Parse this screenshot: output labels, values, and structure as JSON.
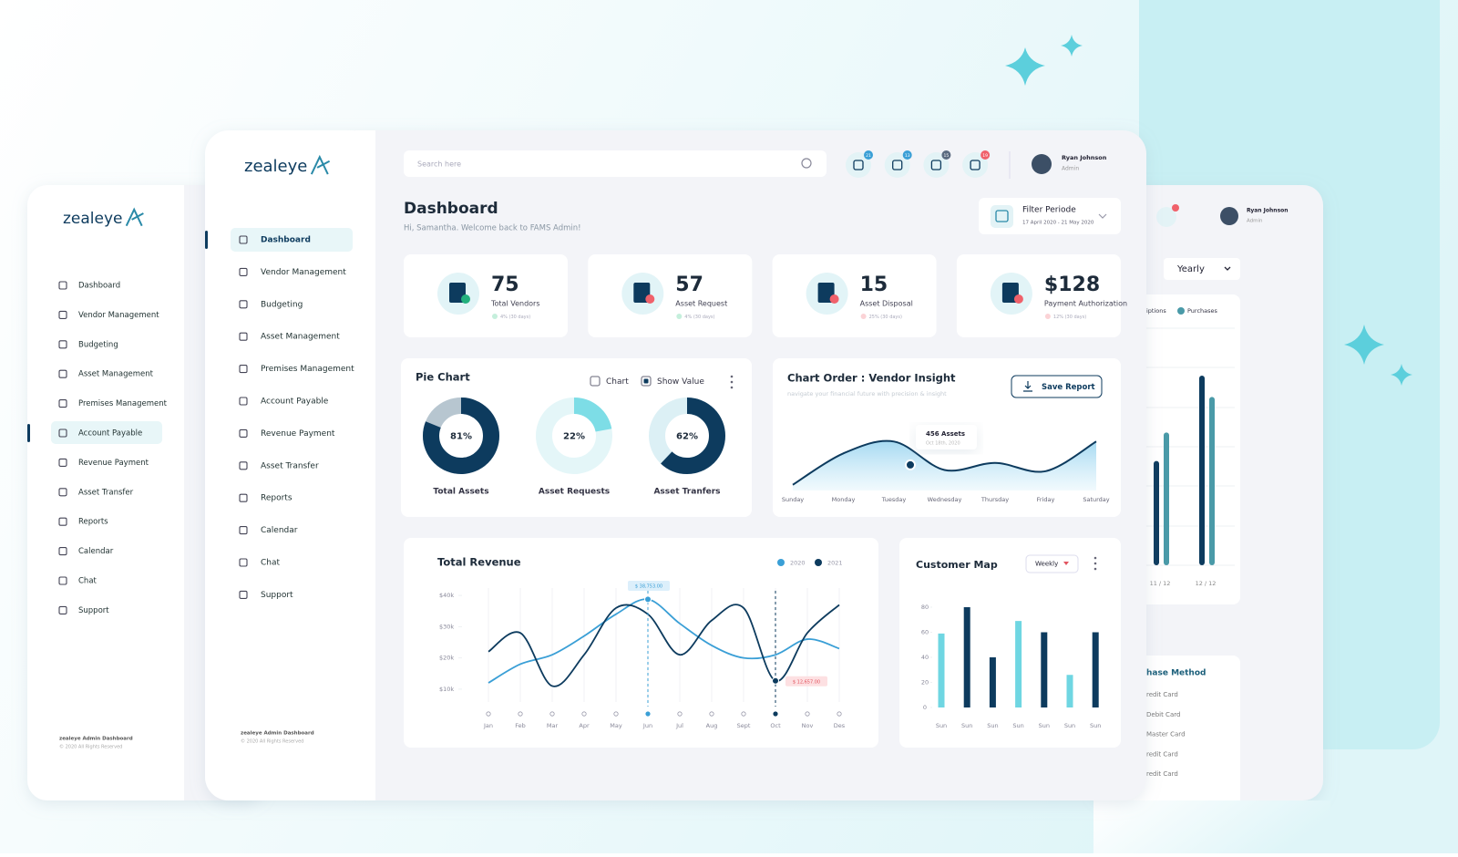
{
  "back_left": {
    "brand": "zealeye",
    "menu": [
      "Dashboard",
      "Vendor Management",
      "Budgeting",
      "Asset Management",
      "Premises Management",
      "Account Payable",
      "Revenue Payment",
      "Asset Transfer",
      "Reports",
      "Calendar",
      "Chat",
      "Support"
    ],
    "footer_title": "zealeye Admin Dashboard",
    "footer_copy": "© 2020 All Rights Reserved"
  },
  "main": {
    "brand": "zealeye",
    "menu": [
      "Dashboard",
      "Vendor Management",
      "Budgeting",
      "Asset Management",
      "Premises Management",
      "Account Payable",
      "Revenue Payment",
      "Asset Transfer",
      "Reports",
      "Calendar",
      "Chat",
      "Support"
    ],
    "footer_title": "zealeye Admin Dashboard",
    "footer_copy": "© 2020 All Rights Reserved",
    "search_placeholder": "Search here",
    "badges": [
      "21",
      "13",
      "15",
      "19"
    ],
    "user": {
      "name": "Ryan Johnson",
      "role": "Admin"
    },
    "page_title": "Dashboard",
    "greeting": "Hi, Samantha. Welcome back to FAMS Admin!",
    "filter": {
      "label": "Filter Periode",
      "range": "17 April 2020 - 21 May 2020"
    },
    "stats": [
      {
        "value": "75",
        "label": "Total Vendors",
        "change": "4% (30 days)"
      },
      {
        "value": "57",
        "label": "Asset Request",
        "change": "4% (30 days)"
      },
      {
        "value": "15",
        "label": "Asset Disposal",
        "change": "25% (30 days)"
      },
      {
        "value": "$128",
        "label": "Payment Authorization",
        "change": "12% (30 days)"
      }
    ],
    "pie_chart": {
      "type": "pie",
      "title": "Pie Chart",
      "options": [
        "Chart",
        "Show Value"
      ],
      "categories": [
        "Total Assets",
        "Asset Requests",
        "Asset Tranfers"
      ],
      "values": [
        81,
        22,
        62
      ],
      "value_labels": [
        "81%",
        "22%",
        "62%"
      ],
      "colors": [
        "#0d3b5e",
        "#7ddde6",
        "#0d3b5e"
      ],
      "track_colors": [
        "#b7c6d0",
        "#e4f6f8",
        "#dcf0f5"
      ]
    },
    "vendor_insight": {
      "type": "area",
      "title": "Chart Order : Vendor Insight",
      "subtitle": "navigate your financial future with precision & insight",
      "button": "Save Report",
      "tooltip_value": "456 Assets",
      "tooltip_date": "Oct 18th, 2020",
      "categories": [
        "Sunday",
        "Monday",
        "Tuesday",
        "Wednesday",
        "Thursday",
        "Friday",
        "Saturday"
      ],
      "values": [
        5,
        58,
        78,
        30,
        42,
        28,
        78
      ],
      "ylim": [
        0,
        100
      ],
      "color": "#0d3b5e"
    },
    "revenue": {
      "type": "line",
      "title": "Total Revenue",
      "categories": [
        "Jan",
        "Feb",
        "Mar",
        "Apr",
        "May",
        "Jun",
        "Jul",
        "Aug",
        "Sept",
        "Oct",
        "Nov",
        "Des"
      ],
      "series": [
        {
          "name": "2020",
          "color": "#3a9fd6",
          "values": [
            12000,
            18000,
            21000,
            27000,
            34000,
            38753,
            31000,
            24000,
            20000,
            21000,
            26000,
            23000
          ],
          "value_labels": [
            null,
            null,
            null,
            null,
            null,
            "$ 38,753.00",
            null,
            null,
            null,
            null,
            null,
            null
          ]
        },
        {
          "name": "2021",
          "color": "#0d3b5e",
          "values": [
            22000,
            28000,
            11000,
            21000,
            36000,
            34000,
            21000,
            32000,
            36000,
            12657,
            28000,
            37000
          ],
          "value_labels": [
            null,
            null,
            null,
            null,
            null,
            null,
            null,
            null,
            null,
            "$ 12,657.00",
            null,
            null
          ]
        }
      ],
      "ylim": [
        5000,
        45000
      ],
      "yticks": [
        {
          "value": 10000,
          "label": "$10k"
        },
        {
          "value": 20000,
          "label": "$20k"
        },
        {
          "value": 30000,
          "label": "$30k"
        },
        {
          "value": 40000,
          "label": "$40k"
        }
      ]
    },
    "customer_map": {
      "type": "bar",
      "title": "Customer Map",
      "period": "Weekly",
      "categories": [
        "Sun",
        "Sun",
        "Sun",
        "Sun",
        "Sun",
        "Sun",
        "Sun"
      ],
      "values": [
        59,
        80,
        40,
        69,
        60,
        26,
        60
      ],
      "colors": [
        "#6fd6e2",
        "#0d3b5e",
        "#0d3b5e",
        "#6fd6e2",
        "#0d3b5e",
        "#6fd6e2",
        "#0d3b5e"
      ],
      "ylim": [
        0,
        80
      ],
      "yticks": [
        0,
        20,
        40,
        60,
        80
      ]
    }
  },
  "back_right": {
    "user": {
      "name": "Ryan Johnson",
      "role": "Admin"
    },
    "period": "Yearly",
    "chart": {
      "type": "bar",
      "categories": [
        "11 / 12",
        "12 / 12"
      ],
      "series": [
        {
          "name": "iptions",
          "color": "#0d3b5e",
          "values": [
            44,
            80
          ]
        },
        {
          "name": "Purchases",
          "color": "#4a9aa8",
          "values": [
            56,
            71
          ]
        }
      ],
      "ylim": [
        0,
        100
      ]
    },
    "purchase_title": "hase Method",
    "purchase_methods": [
      "redit Card",
      "Debit Card",
      "Master Card",
      "redit Card",
      "redit Card"
    ]
  }
}
